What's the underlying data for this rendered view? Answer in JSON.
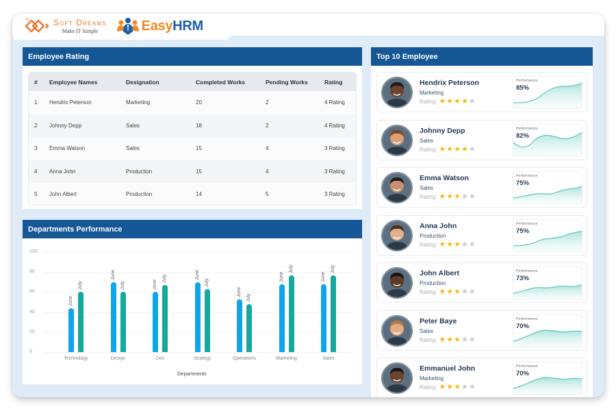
{
  "brand": {
    "company": "Soft Dreams",
    "tagline": "Make IT Simple",
    "product_easy": "Easy",
    "product_hrm": "HRM",
    "colors": {
      "orange": "#e9762c",
      "blue": "#1c5ea8",
      "header": "#155694"
    }
  },
  "employee_rating": {
    "title": "Employee Rating",
    "columns": [
      "#",
      "Employee Names",
      "Designation",
      "Completed Works",
      "Pending Works",
      "Rating"
    ],
    "rows": [
      {
        "num": "1",
        "name": "Hendrix Peterson",
        "designation": "Marketing",
        "completed": "20",
        "pending": "2",
        "rating": "4 Rating"
      },
      {
        "num": "2",
        "name": "Johnny Depp",
        "designation": "Sales",
        "completed": "18",
        "pending": "2",
        "rating": "4 Rating"
      },
      {
        "num": "3",
        "name": "Emma Watson",
        "designation": "Sales",
        "completed": "15",
        "pending": "4",
        "rating": "3 Rating"
      },
      {
        "num": "4",
        "name": "Anna John",
        "designation": "Production",
        "completed": "15",
        "pending": "4",
        "rating": "3 Rating"
      },
      {
        "num": "5",
        "name": "John Albert",
        "designation": "Production",
        "completed": "14",
        "pending": "5",
        "rating": "3 Rating"
      }
    ]
  },
  "departments": {
    "title": "Departments Performance",
    "xlabel": "Departments"
  },
  "chart_data": {
    "type": "bar",
    "title": "Departments Performance",
    "xlabel": "Departments",
    "ylabel": "",
    "ylim": [
      0,
      100
    ],
    "yticks": [
      0,
      20,
      40,
      60,
      80,
      100
    ],
    "grid": true,
    "legend": "bar-labels",
    "categories": [
      "Technology",
      "Design",
      "Dev",
      "Strategy",
      "Operations",
      "Marketing",
      "Sales"
    ],
    "series": [
      {
        "name": "June",
        "color": "#0ea5e9",
        "values": [
          44,
          70,
          60,
          70,
          53,
          68,
          68
        ]
      },
      {
        "name": "July",
        "color": "#14a99a",
        "values": [
          60,
          60,
          67,
          63,
          48,
          77,
          77
        ]
      }
    ]
  },
  "top_employees": {
    "title": "Top 10 Employee",
    "rating_label": "Rating:",
    "perf_label": "Performance",
    "items": [
      {
        "name": "Hendrix Peterson",
        "dept": "Marketing",
        "stars": 4,
        "perf": "85%"
      },
      {
        "name": "Johnny Depp",
        "dept": "Sales",
        "stars": 4,
        "perf": "82%"
      },
      {
        "name": "Emma Watson",
        "dept": "Sales",
        "stars": 3,
        "perf": "75%"
      },
      {
        "name": "Anna John",
        "dept": "Production",
        "stars": 3,
        "perf": "75%"
      },
      {
        "name": "John Albert",
        "dept": "Production",
        "stars": 3,
        "perf": "73%"
      },
      {
        "name": "Peter Baye",
        "dept": "Sales",
        "stars": 3,
        "perf": "70%"
      },
      {
        "name": "Emmanuel John",
        "dept": "Marketing",
        "stars": 3,
        "perf": "70%"
      }
    ]
  }
}
